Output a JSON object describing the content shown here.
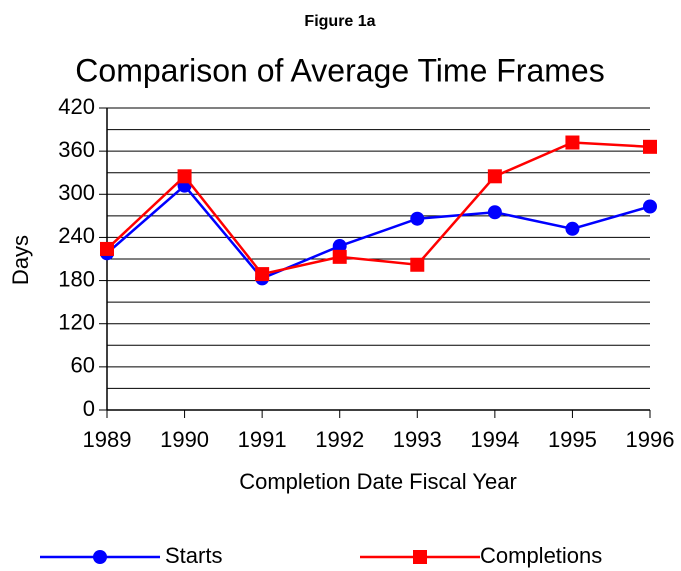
{
  "chart_data": {
    "type": "line",
    "figure_label": "Figure 1a",
    "title": "Comparison of Average Time Frames",
    "x_label": "Completion Date Fiscal Year",
    "y_label": "Days",
    "categories": [
      "1989",
      "1990",
      "1991",
      "1992",
      "1993",
      "1994",
      "1995",
      "1996"
    ],
    "series": [
      {
        "name": "Starts",
        "color": "#0000ff",
        "marker": "circle",
        "values": [
          218,
          312,
          183,
          228,
          266,
          275,
          252,
          283
        ]
      },
      {
        "name": "Completions",
        "color": "#ff0000",
        "marker": "square",
        "values": [
          224,
          325,
          189,
          213,
          202,
          325,
          372,
          366
        ]
      }
    ],
    "ylim": [
      0,
      420
    ],
    "yticks": [
      0,
      60,
      120,
      180,
      240,
      300,
      360,
      420
    ],
    "minor_yticks": [
      30,
      90,
      150,
      210,
      270,
      330,
      390
    ],
    "grid": true,
    "legend": "bottom"
  }
}
